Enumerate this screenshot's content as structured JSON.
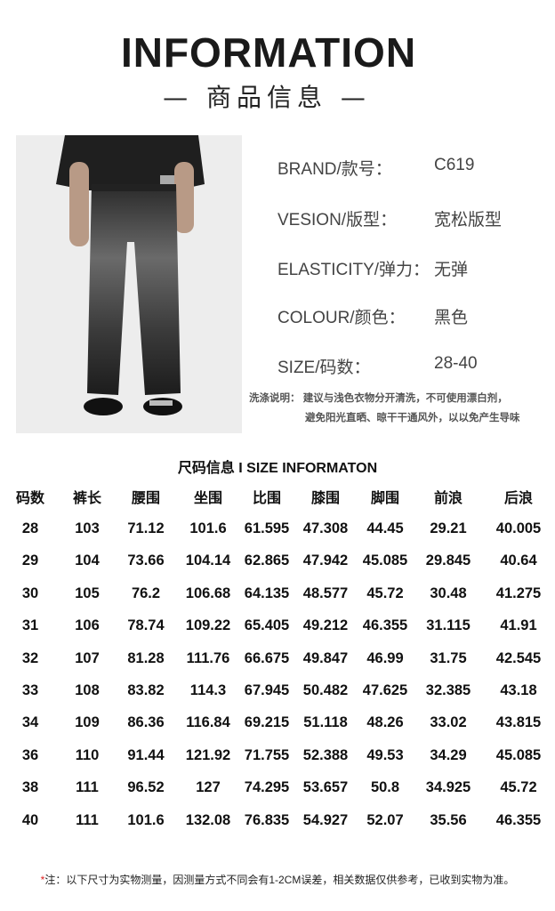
{
  "header": {
    "title": "INFORMATION",
    "subtitle": "— 商品信息 —"
  },
  "info": [
    {
      "label": "BRAND/款号：",
      "value": "C619"
    },
    {
      "label": "VESION/版型：",
      "value": "宽松版型"
    },
    {
      "label": "ELASTICITY/弹力：",
      "value": "无弹"
    },
    {
      "label": "COLOUR/颜色：",
      "value": "黑色"
    },
    {
      "label": "SIZE/码数：",
      "value": "28-40"
    }
  ],
  "wash": {
    "line1": "洗涤说明：  建议与浅色衣物分开清洗，不可使用漂白剂，",
    "line2": "避免阳光直晒、晾干干通风外，以以免产生导味"
  },
  "size_table": {
    "title": "尺码信息 I SIZE INFORMATON",
    "headers": [
      "码数",
      "裤长",
      "腰围",
      "坐围",
      "比围",
      "膝围",
      "脚围",
      "前浪",
      "后浪"
    ],
    "rows": [
      [
        "28",
        "103",
        "71.12",
        "101.6",
        "61.595",
        "47.308",
        "44.45",
        "29.21",
        "40.005"
      ],
      [
        "29",
        "104",
        "73.66",
        "104.14",
        "62.865",
        "47.942",
        "45.085",
        "29.845",
        "40.64"
      ],
      [
        "30",
        "105",
        "76.2",
        "106.68",
        "64.135",
        "48.577",
        "45.72",
        "30.48",
        "41.275"
      ],
      [
        "31",
        "106",
        "78.74",
        "109.22",
        "65.405",
        "49.212",
        "46.355",
        "31.115",
        "41.91"
      ],
      [
        "32",
        "107",
        "81.28",
        "111.76",
        "66.675",
        "49.847",
        "46.99",
        "31.75",
        "42.545"
      ],
      [
        "33",
        "108",
        "83.82",
        "114.3",
        "67.945",
        "50.482",
        "47.625",
        "32.385",
        "43.18"
      ],
      [
        "34",
        "109",
        "86.36",
        "116.84",
        "69.215",
        "51.118",
        "48.26",
        "33.02",
        "43.815"
      ],
      [
        "36",
        "110",
        "91.44",
        "121.92",
        "71.755",
        "52.388",
        "49.53",
        "34.29",
        "45.085"
      ],
      [
        "38",
        "111",
        "96.52",
        "127",
        "74.295",
        "53.657",
        "50.8",
        "34.925",
        "45.72"
      ],
      [
        "40",
        "111",
        "101.6",
        "132.08",
        "76.835",
        "54.927",
        "52.07",
        "35.56",
        "46.355"
      ]
    ]
  },
  "note": {
    "star": "*",
    "text": "注：以下尺寸为实物测量，因测量方式不同会有1-2CM误差，相关数据仅供参考，已收到实物为准。"
  },
  "colors": {
    "accent": "#e02020",
    "text": "#444444"
  }
}
